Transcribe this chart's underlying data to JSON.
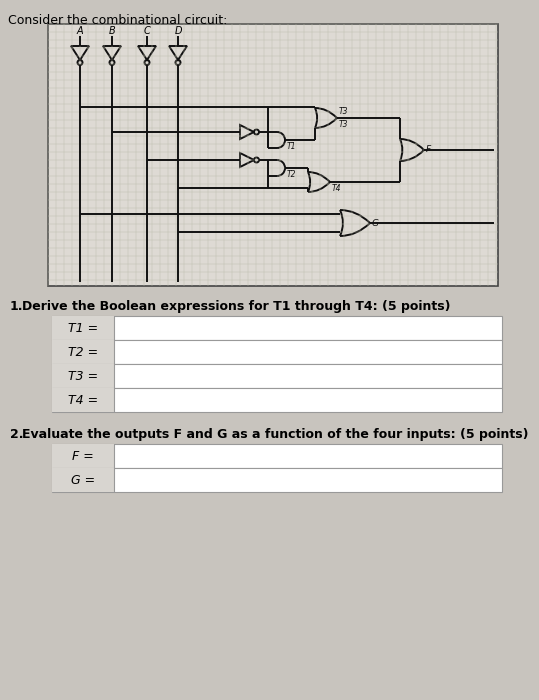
{
  "title": "Consider the combinational circuit:",
  "bg_color": "#c8c4be",
  "circuit_bg": "#dedad4",
  "circuit_border": "#444444",
  "inputs": [
    "A",
    "B",
    "C",
    "D"
  ],
  "q1_label": "1.",
  "q1_text": "Derive the Boolean expressions for T1 through T4: (5 points)",
  "q2_label": "2.",
  "q2_text": "Evaluate the outputs F and G as a function of the four inputs: (5 points)",
  "t_labels": [
    "T1 =",
    "T2 =",
    "T3 =",
    "T4 ="
  ],
  "fg_labels": [
    "F =",
    "G ="
  ],
  "title_fontsize": 9,
  "body_fontsize": 9,
  "table_fontsize": 9
}
